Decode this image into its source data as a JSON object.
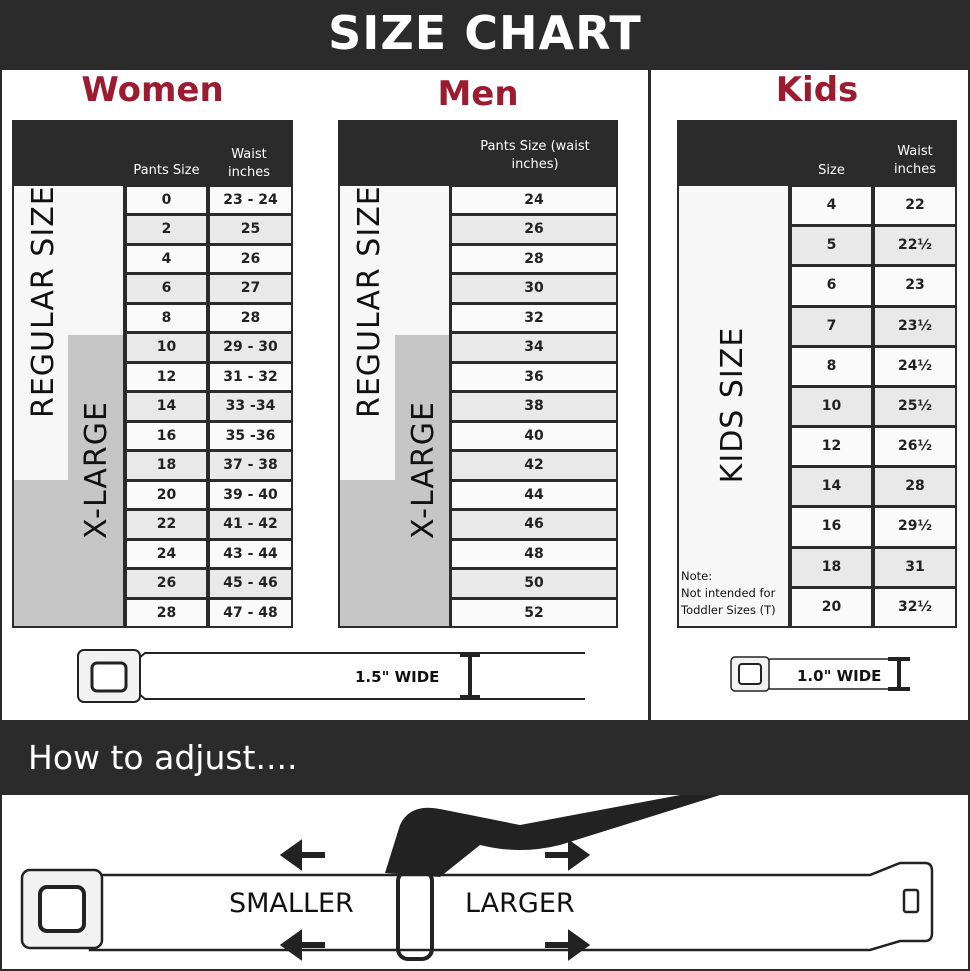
{
  "header": {
    "title": "SIZE CHART"
  },
  "women": {
    "title": "Women",
    "col1": "Pants Size",
    "col2": "Waist inches",
    "regular_label": "REGULAR SIZE",
    "xlarge_label": "X-LARGE",
    "rows": [
      [
        "0",
        "23 - 24"
      ],
      [
        "2",
        "25"
      ],
      [
        "4",
        "26"
      ],
      [
        "6",
        "27"
      ],
      [
        "8",
        "28"
      ],
      [
        "10",
        "29 - 30"
      ],
      [
        "12",
        "31 - 32"
      ],
      [
        "14",
        "33 -34"
      ],
      [
        "16",
        "35 -36"
      ],
      [
        "18",
        "37 - 38"
      ],
      [
        "20",
        "39 - 40"
      ],
      [
        "22",
        "41 - 42"
      ],
      [
        "24",
        "43 - 44"
      ],
      [
        "26",
        "45 - 46"
      ],
      [
        "28",
        "47 - 48"
      ]
    ]
  },
  "men": {
    "title": "Men",
    "col1": "Pants Size (waist inches)",
    "regular_label": "REGULAR SIZE",
    "xlarge_label": "X-LARGE",
    "rows": [
      "24",
      "26",
      "28",
      "30",
      "32",
      "34",
      "36",
      "38",
      "40",
      "42",
      "44",
      "46",
      "48",
      "50",
      "52"
    ]
  },
  "kids": {
    "title": "Kids",
    "col1": "Size",
    "col2": "Waist inches",
    "side_label": "KIDS SIZE",
    "note_title": "Note:",
    "note_text": "Not intended for Toddler Sizes (T)",
    "rows": [
      [
        "4",
        "22"
      ],
      [
        "5",
        "22½"
      ],
      [
        "6",
        "23"
      ],
      [
        "7",
        "23½"
      ],
      [
        "8",
        "24½"
      ],
      [
        "10",
        "25½"
      ],
      [
        "12",
        "26½"
      ],
      [
        "14",
        "28"
      ],
      [
        "16",
        "29½"
      ],
      [
        "18",
        "31"
      ],
      [
        "20",
        "32½"
      ]
    ]
  },
  "belts": {
    "adult_width": "1.5\" WIDE",
    "kids_width": "1.0\" WIDE"
  },
  "adjust": {
    "title": "How to adjust....",
    "smaller": "SMALLER",
    "larger": "LARGER"
  },
  "colors": {
    "accent": "#9b1b30",
    "dark": "#2b2b2b",
    "xlarge": "#c6c6c6"
  }
}
